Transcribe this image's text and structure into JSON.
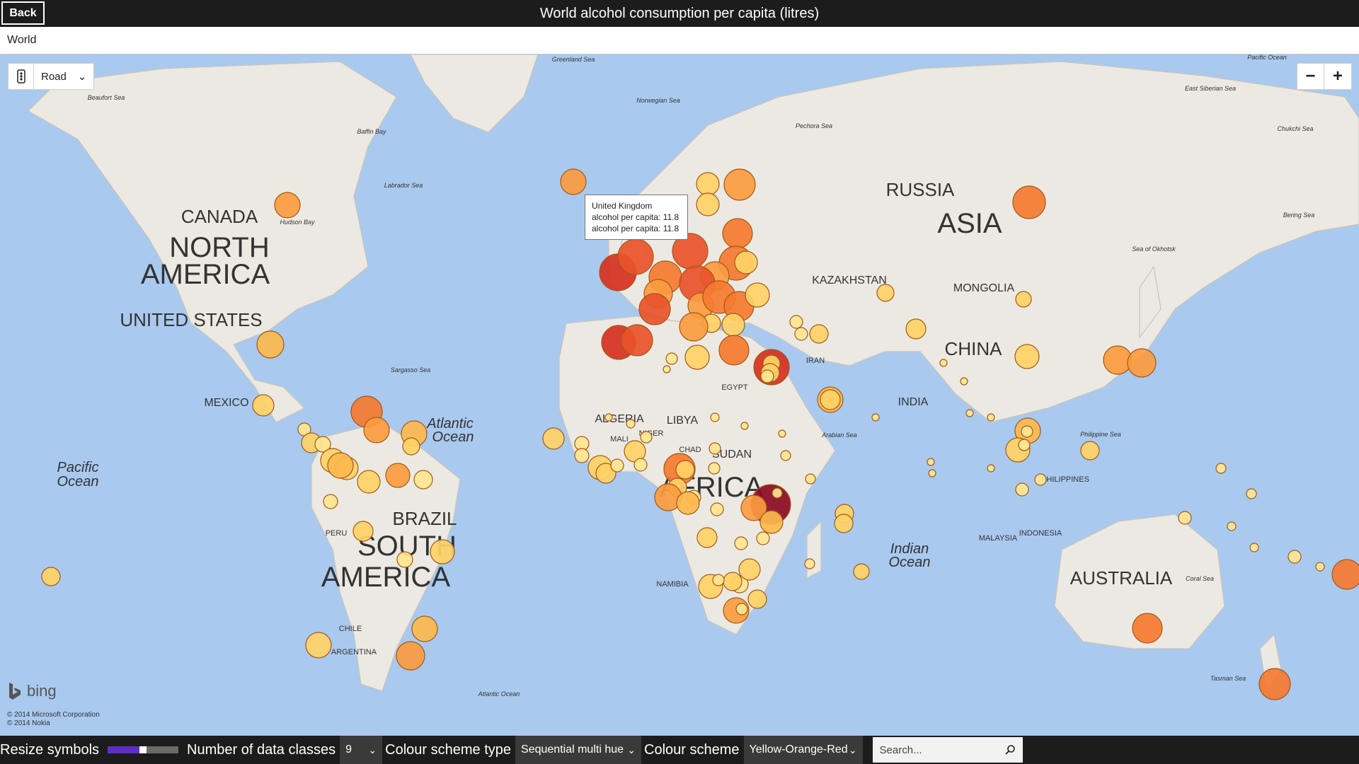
{
  "header": {
    "back_label": "Back",
    "title": "World alcohol consumption per capita (litres)"
  },
  "breadcrumb": {
    "label": "World"
  },
  "map_controls": {
    "map_type": "Road",
    "zoom_out": "−",
    "zoom_in": "+"
  },
  "tooltip": {
    "country": "United Kingdom",
    "line1": "alcohol per capita: 11.8",
    "line2": "alcohol per capita: 11.8"
  },
  "attribution": {
    "logo": "bing",
    "copyright1": "© 2014 Microsoft Corporation",
    "copyright2": "© 2014 Nokia"
  },
  "toolbar": {
    "resize_label": "Resize symbols",
    "resize_value": 0.45,
    "classes_label": "Number of data classes",
    "classes_value": "9",
    "scheme_type_label": "Colour scheme type",
    "scheme_type_value": "Sequential multi hue",
    "scheme_label": "Colour scheme",
    "scheme_value": "Yellow-Orange-Red",
    "search_placeholder": "Search..."
  },
  "colors": {
    "c1": "#ffe58f",
    "c2": "#ffd166",
    "c3": "#fdb94d",
    "c4": "#fb9b3f",
    "c5": "#f57a30",
    "c6": "#e9532a",
    "c7": "#d7301f",
    "c8": "#8b0a23"
  },
  "map_labels": [
    {
      "text": "CANADA",
      "size": "big"
    },
    {
      "text": "NORTH",
      "size": "continent"
    },
    {
      "text": "AMERICA",
      "size": "continent"
    },
    {
      "text": "UNITED STATES",
      "size": "big"
    },
    {
      "text": "MEXICO",
      "size": "med"
    },
    {
      "text": "RUSSIA",
      "size": "big"
    },
    {
      "text": "ASIA",
      "size": "continent"
    },
    {
      "text": "KAZAKHSTAN",
      "size": "med"
    },
    {
      "text": "MONGOLIA",
      "size": "med"
    },
    {
      "text": "CHINA",
      "size": "big"
    },
    {
      "text": "INDIA",
      "size": "med"
    },
    {
      "text": "BRAZIL",
      "size": "big"
    },
    {
      "text": "SOUTH",
      "size": "continent"
    },
    {
      "text": "AMERICA",
      "size": "continent"
    },
    {
      "text": "AUSTRALIA",
      "size": "big"
    },
    {
      "text": "ALGERIA",
      "size": "med"
    },
    {
      "text": "LIBYA",
      "size": "med"
    },
    {
      "text": "SUDAN",
      "size": "med"
    },
    {
      "text": "AFRICA",
      "size": "continent"
    },
    {
      "text": "Atlantic",
      "size": "ocean"
    },
    {
      "text": "Ocean",
      "size": "ocean"
    },
    {
      "text": "Pacific",
      "size": "ocean"
    },
    {
      "text": "Ocean",
      "size": "ocean"
    },
    {
      "text": "Indian",
      "size": "ocean"
    },
    {
      "text": "Ocean",
      "size": "ocean"
    },
    {
      "text": "IRAN",
      "size": "small"
    },
    {
      "text": "EGYPT",
      "size": "small"
    },
    {
      "text": "PERU",
      "size": "small"
    },
    {
      "text": "ARGENTINA",
      "size": "small"
    },
    {
      "text": "CHILE",
      "size": "small"
    },
    {
      "text": "NIGER",
      "size": "small"
    },
    {
      "text": "CHAD",
      "size": "small"
    },
    {
      "text": "MALI",
      "size": "small"
    },
    {
      "text": "NAMIBIA",
      "size": "small"
    },
    {
      "text": "PHILIPPINES",
      "size": "small"
    },
    {
      "text": "INDONESIA",
      "size": "small"
    },
    {
      "text": "MALAYSIA",
      "size": "small"
    },
    {
      "text": "Greenland Sea",
      "size": "sea"
    },
    {
      "text": "Norwegian Sea",
      "size": "sea"
    },
    {
      "text": "Labrador Sea",
      "size": "sea"
    },
    {
      "text": "Baffin Bay",
      "size": "sea"
    },
    {
      "text": "Hudson Bay",
      "size": "sea"
    },
    {
      "text": "Beaufort Sea",
      "size": "sea"
    },
    {
      "text": "Sargasso Sea",
      "size": "sea"
    },
    {
      "text": "Arabian Sea",
      "size": "sea"
    },
    {
      "text": "Coral Sea",
      "size": "sea"
    },
    {
      "text": "Tasman Sea",
      "size": "sea"
    },
    {
      "text": "Philippine Sea",
      "size": "sea"
    },
    {
      "text": "East Siberian Sea",
      "size": "sea"
    },
    {
      "text": "Bering Sea",
      "size": "sea"
    },
    {
      "text": "Sea of Okhotsk",
      "size": "sea"
    },
    {
      "text": "Chukchi Sea",
      "size": "sea"
    },
    {
      "text": "Pechora Sea",
      "size": "sea"
    },
    {
      "text": "Atlantic Ocean",
      "size": "sea"
    },
    {
      "text": "Pacific Ocean",
      "size": "sea"
    }
  ]
}
